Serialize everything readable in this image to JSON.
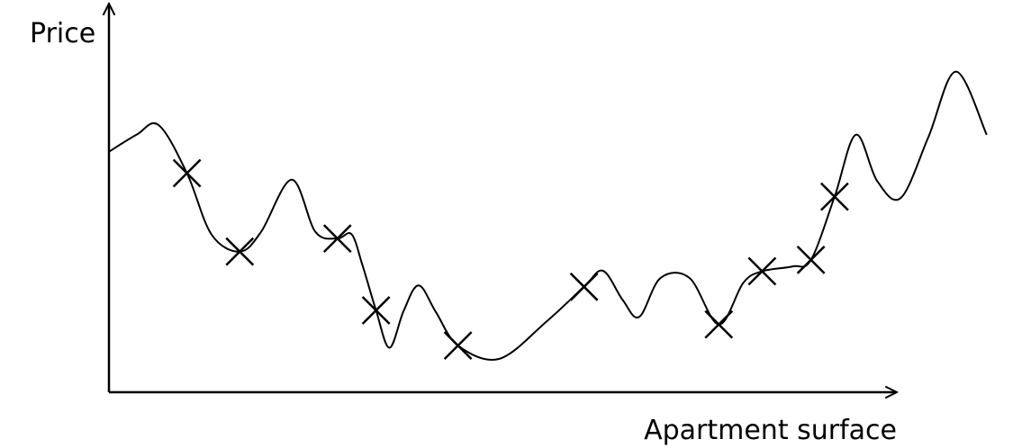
{
  "chart_data": {
    "type": "scatter",
    "title": "",
    "xlabel": "Apartment surface",
    "ylabel": "Price",
    "grid": false,
    "legend": "none",
    "points": [
      {
        "x": 0.099,
        "y": 0.902
      },
      {
        "x": 0.166,
        "y": 0.579
      },
      {
        "x": 0.29,
        "y": 0.633
      },
      {
        "x": 0.339,
        "y": 0.337
      },
      {
        "x": 0.443,
        "y": 0.192
      },
      {
        "x": 0.603,
        "y": 0.434
      },
      {
        "x": 0.774,
        "y": 0.279
      },
      {
        "x": 0.829,
        "y": 0.498
      },
      {
        "x": 0.891,
        "y": 0.545
      },
      {
        "x": 0.921,
        "y": 0.805
      }
    ],
    "fitted_curve": [
      {
        "x": 0.0,
        "y": 0.99
      },
      {
        "x": 0.035,
        "y": 1.06
      },
      {
        "x": 0.063,
        "y": 1.1
      },
      {
        "x": 0.099,
        "y": 0.902
      },
      {
        "x": 0.13,
        "y": 0.65
      },
      {
        "x": 0.166,
        "y": 0.579
      },
      {
        "x": 0.193,
        "y": 0.66
      },
      {
        "x": 0.232,
        "y": 0.875
      },
      {
        "x": 0.262,
        "y": 0.66
      },
      {
        "x": 0.29,
        "y": 0.633
      },
      {
        "x": 0.308,
        "y": 0.65
      },
      {
        "x": 0.322,
        "y": 0.52
      },
      {
        "x": 0.339,
        "y": 0.337
      },
      {
        "x": 0.356,
        "y": 0.183
      },
      {
        "x": 0.374,
        "y": 0.335
      },
      {
        "x": 0.393,
        "y": 0.44
      },
      {
        "x": 0.415,
        "y": 0.33
      },
      {
        "x": 0.443,
        "y": 0.192
      },
      {
        "x": 0.495,
        "y": 0.137
      },
      {
        "x": 0.555,
        "y": 0.29
      },
      {
        "x": 0.603,
        "y": 0.434
      },
      {
        "x": 0.627,
        "y": 0.5
      },
      {
        "x": 0.652,
        "y": 0.38
      },
      {
        "x": 0.673,
        "y": 0.31
      },
      {
        "x": 0.7,
        "y": 0.47
      },
      {
        "x": 0.737,
        "y": 0.47
      },
      {
        "x": 0.774,
        "y": 0.279
      },
      {
        "x": 0.805,
        "y": 0.45
      },
      {
        "x": 0.829,
        "y": 0.498
      },
      {
        "x": 0.868,
        "y": 0.518
      },
      {
        "x": 0.891,
        "y": 0.545
      },
      {
        "x": 0.921,
        "y": 0.805
      },
      {
        "x": 0.948,
        "y": 1.06
      },
      {
        "x": 0.975,
        "y": 0.87
      },
      {
        "x": 1.005,
        "y": 0.8
      },
      {
        "x": 1.04,
        "y": 1.05
      },
      {
        "x": 1.075,
        "y": 1.32
      },
      {
        "x": 1.114,
        "y": 1.06
      }
    ]
  }
}
